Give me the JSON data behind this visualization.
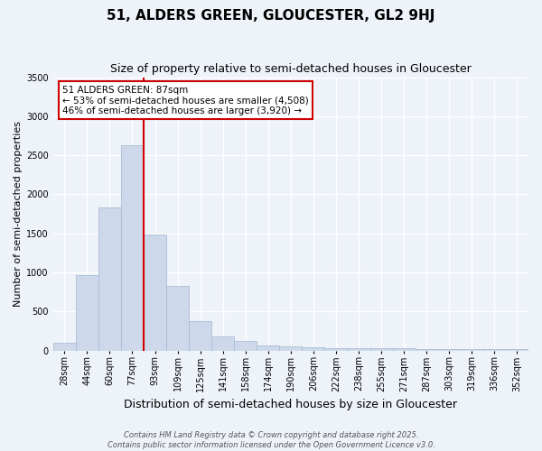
{
  "title": "51, ALDERS GREEN, GLOUCESTER, GL2 9HJ",
  "subtitle": "Size of property relative to semi-detached houses in Gloucester",
  "xlabel": "Distribution of semi-detached houses by size in Gloucester",
  "ylabel": "Number of semi-detached properties",
  "footer_line1": "Contains HM Land Registry data © Crown copyright and database right 2025.",
  "footer_line2": "Contains public sector information licensed under the Open Government Licence v3.0.",
  "annotation_title": "51 ALDERS GREEN: 87sqm",
  "annotation_line2": "← 53% of semi-detached houses are smaller (4,508)",
  "annotation_line3": "46% of semi-detached houses are larger (3,920) →",
  "bar_heights": [
    95,
    960,
    1830,
    2630,
    1480,
    830,
    380,
    175,
    120,
    65,
    55,
    40,
    35,
    30,
    28,
    25,
    22,
    20,
    18,
    16,
    14
  ],
  "categories": [
    "28sqm",
    "44sqm",
    "60sqm",
    "77sqm",
    "93sqm",
    "109sqm",
    "125sqm",
    "141sqm",
    "158sqm",
    "174sqm",
    "190sqm",
    "206sqm",
    "222sqm",
    "238sqm",
    "255sqm",
    "271sqm",
    "287sqm",
    "303sqm",
    "319sqm",
    "336sqm",
    "352sqm"
  ],
  "bar_color": "#cdd9ea",
  "bar_edge_color": "#aabdd4",
  "property_line_color": "#cc0000",
  "property_line_bar_index": 3.5,
  "ylim": [
    0,
    3500
  ],
  "yticks": [
    0,
    500,
    1000,
    1500,
    2000,
    2500,
    3000,
    3500
  ],
  "annotation_box_color": "#ffffff",
  "annotation_box_edge": "#cc0000",
  "background_color": "#eef2f9",
  "grid_color": "#ffffff",
  "title_fontsize": 11,
  "subtitle_fontsize": 9,
  "xlabel_fontsize": 9,
  "ylabel_fontsize": 8,
  "tick_fontsize": 7,
  "footer_fontsize": 6,
  "annotation_fontsize": 7.5
}
